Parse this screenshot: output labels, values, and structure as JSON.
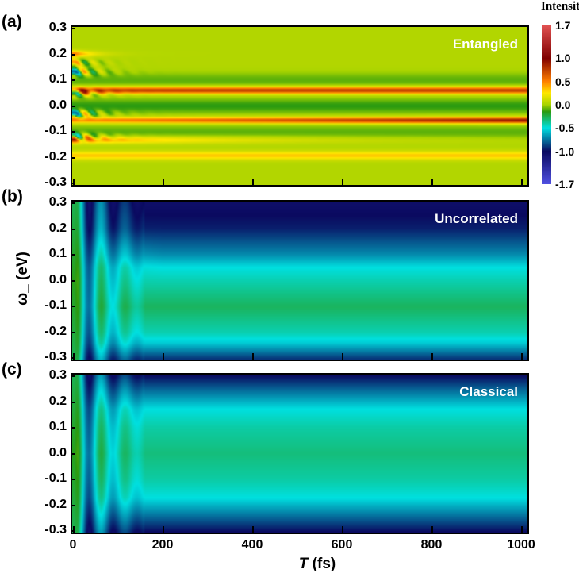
{
  "chart_data": [
    {
      "type": "heatmap",
      "panel_label": "(a)",
      "title": "Entangled",
      "x_range": [
        0,
        1000
      ],
      "y_range": [
        -0.3,
        0.3
      ],
      "features": {
        "bands_omega_eV": [
          0.2,
          0.06,
          -0.055,
          -0.13,
          -0.19
        ],
        "strongest_band_omega_eV": -0.055
      }
    },
    {
      "type": "heatmap",
      "panel_label": "(b)",
      "title": "Uncorrelated",
      "x_range": [
        0,
        1000
      ],
      "y_range": [
        -0.3,
        0.3
      ],
      "features": {
        "cyan_bands_omega_eV": [
          0.05,
          -0.23
        ]
      }
    },
    {
      "type": "heatmap",
      "panel_label": "(c)",
      "title": "Classical",
      "x_range": [
        0,
        1000
      ],
      "y_range": [
        -0.3,
        0.3
      ],
      "features": {
        "cyan_bands_omega_eV": [
          0.17,
          -0.17
        ]
      }
    }
  ],
  "axes": {
    "xlabel_symbol": "T",
    "xlabel_unit": " (fs)",
    "ylabel": "ω_ (eV)",
    "xticks": [
      "0",
      "200",
      "400",
      "600",
      "800",
      "1000"
    ],
    "yticks": [
      "0.3",
      "0.2",
      "0.1",
      "0.0",
      "-0.1",
      "-0.2",
      "-0.3"
    ]
  },
  "colorbar": {
    "title": "Intensity",
    "range": [
      -1.7,
      1.7
    ],
    "ticks": [
      "1.7",
      "1.0",
      "0.5",
      "0.0",
      "-0.5",
      "-1.0",
      "-1.7"
    ],
    "colors": [
      "#5050e0",
      "#0a0a60",
      "#00e0e0",
      "#2a9a10",
      "#a8d400",
      "#ffe800",
      "#ff8000",
      "#800000",
      "#e05050"
    ]
  }
}
